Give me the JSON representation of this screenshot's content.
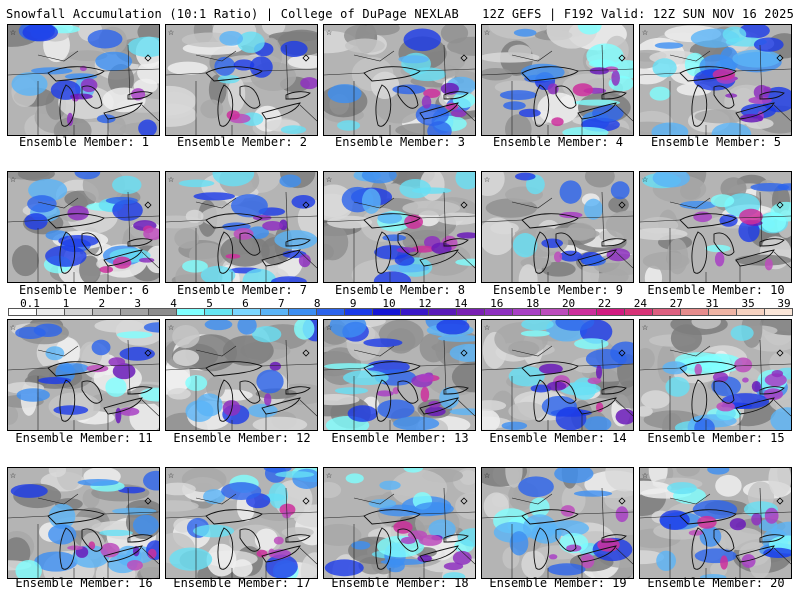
{
  "header": {
    "title": "Snowfall Accumulation (10:1 Ratio) | College of DuPage NEXLAB",
    "run_info": "12Z GEFS | F192 Valid: 12Z SUN NOV 16 2025"
  },
  "members": [
    {
      "label": "Ensemble Member: 1",
      "intensity": 0.65
    },
    {
      "label": "Ensemble Member: 2",
      "intensity": 0.3
    },
    {
      "label": "Ensemble Member: 3",
      "intensity": 0.55
    },
    {
      "label": "Ensemble Member: 4",
      "intensity": 0.8
    },
    {
      "label": "Ensemble Member: 5",
      "intensity": 0.95
    },
    {
      "label": "Ensemble Member: 6",
      "intensity": 0.75
    },
    {
      "label": "Ensemble Member: 7",
      "intensity": 0.7
    },
    {
      "label": "Ensemble Member: 8",
      "intensity": 0.8
    },
    {
      "label": "Ensemble Member: 9",
      "intensity": 0.3
    },
    {
      "label": "Ensemble Member: 10",
      "intensity": 0.6
    },
    {
      "label": "Ensemble Member: 11",
      "intensity": 0.55
    },
    {
      "label": "Ensemble Member: 12",
      "intensity": 0.35
    },
    {
      "label": "Ensemble Member: 13",
      "intensity": 0.95
    },
    {
      "label": "Ensemble Member: 14",
      "intensity": 0.8
    },
    {
      "label": "Ensemble Member: 15",
      "intensity": 0.95
    },
    {
      "label": "Ensemble Member: 16",
      "intensity": 0.8
    },
    {
      "label": "Ensemble Member: 17",
      "intensity": 0.7
    },
    {
      "label": "Ensemble Member: 18",
      "intensity": 0.9
    },
    {
      "label": "Ensemble Member: 19",
      "intensity": 0.65
    },
    {
      "label": "Ensemble Member: 20",
      "intensity": 0.8
    }
  ],
  "colorbar": {
    "ticks": [
      "0.1",
      "1",
      "2",
      "3",
      "4",
      "5",
      "6",
      "7",
      "8",
      "9",
      "10",
      "12",
      "14",
      "16",
      "18",
      "20",
      "22",
      "24",
      "27",
      "31",
      "35",
      "39"
    ],
    "colors": [
      "#ffffff",
      "#ececec",
      "#d4d4d4",
      "#bdbdbd",
      "#a3a3a3",
      "#8d8d8d",
      "#7fffff",
      "#66e6f2",
      "#7ad6ff",
      "#5ab4f7",
      "#3c8ef2",
      "#2c64ec",
      "#1a3ae8",
      "#1414d4",
      "#3a18c8",
      "#5a1ab8",
      "#7a20b4",
      "#8e30c0",
      "#a840c4",
      "#bc4cbc",
      "#cc2f9c",
      "#d21c82",
      "#d83478",
      "#dd6080",
      "#e68c8c",
      "#efb4a4",
      "#f6d2c0",
      "#fbe6d8"
    ]
  }
}
